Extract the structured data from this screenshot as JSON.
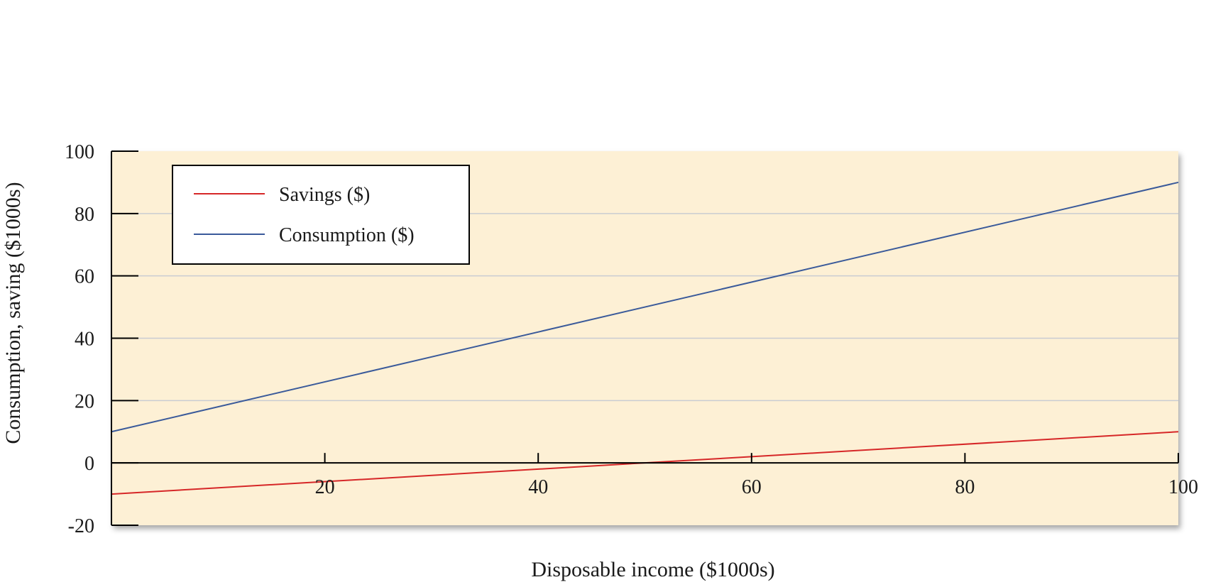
{
  "chart_data": {
    "type": "line",
    "title": "",
    "xlabel": "Disposable income ($1000s)",
    "ylabel": "Consumption, saving ($1000s)",
    "xlim": [
      0,
      100
    ],
    "ylim": [
      -20,
      100
    ],
    "x_ticks": [
      20,
      40,
      60,
      80,
      100
    ],
    "y_ticks": [
      -20,
      0,
      20,
      40,
      60,
      80,
      100
    ],
    "grid": "horizontal",
    "legend_position": "top-left",
    "plot_background": "#fdf0d5",
    "series": [
      {
        "name": "Savings ($)",
        "color": "#d62728",
        "x": [
          0,
          100
        ],
        "y": [
          -10,
          10
        ]
      },
      {
        "name": "Consumption ($)",
        "color": "#3a5a9a",
        "x": [
          0,
          100
        ],
        "y": [
          10,
          90
        ]
      }
    ]
  }
}
